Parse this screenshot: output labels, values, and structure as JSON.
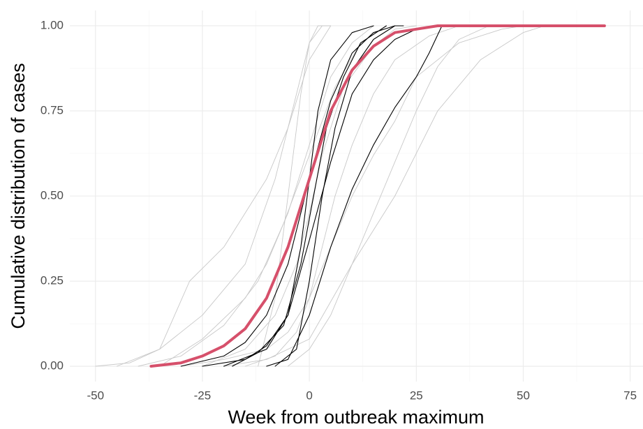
{
  "chart_data": {
    "type": "line",
    "x_label": "Week from outbreak maximum",
    "y_label": "Cumulative distribution of cases",
    "xlim": [
      -56,
      78
    ],
    "ylim": [
      -0.045,
      1.045
    ],
    "xticks": [
      -50,
      -25,
      0,
      25,
      50,
      75
    ],
    "yticks": [
      {
        "value": 0,
        "label": "0.00"
      },
      {
        "value": 0.25,
        "label": "0.25"
      },
      {
        "value": 0.5,
        "label": "0.50"
      },
      {
        "value": 0.75,
        "label": "0.75"
      },
      {
        "value": 1,
        "label": "1.00"
      }
    ],
    "grid": true,
    "series": [
      {
        "color": "#c8c8c8",
        "x": [
          -50,
          -42,
          -35,
          -28,
          -20,
          -15,
          -10,
          -5,
          0,
          5
        ],
        "values": [
          0,
          0.01,
          0.05,
          0.25,
          0.35,
          0.45,
          0.55,
          0.7,
          0.9,
          1
        ]
      },
      {
        "color": "#c8c8c8",
        "x": [
          -45,
          -35,
          -25,
          -15,
          -8,
          -3,
          0,
          3
        ],
        "values": [
          0,
          0.05,
          0.15,
          0.3,
          0.55,
          0.8,
          0.95,
          1
        ]
      },
      {
        "color": "#c8c8c8",
        "x": [
          -30,
          -20,
          -10,
          -5,
          0,
          5,
          10,
          15,
          20,
          25,
          35,
          45,
          50
        ],
        "values": [
          0,
          0.02,
          0.05,
          0.1,
          0.2,
          0.35,
          0.5,
          0.62,
          0.72,
          0.85,
          0.95,
          0.99,
          1
        ]
      },
      {
        "color": "#c8c8c8",
        "x": [
          -20,
          -10,
          0,
          10,
          20,
          30,
          40,
          50,
          55
        ],
        "values": [
          0,
          0.02,
          0.08,
          0.3,
          0.5,
          0.75,
          0.9,
          0.98,
          1
        ]
      },
      {
        "color": "#c8c8c8",
        "x": [
          -12,
          -8,
          -5,
          -2,
          0,
          2,
          5
        ],
        "values": [
          0,
          0.2,
          0.5,
          0.8,
          0.95,
          1,
          1
        ]
      },
      {
        "color": "#c8c8c8",
        "x": [
          -35,
          -25,
          -15,
          -10,
          -5,
          0,
          5,
          10,
          15
        ],
        "values": [
          0,
          0.08,
          0.2,
          0.3,
          0.45,
          0.65,
          0.85,
          0.95,
          1
        ]
      },
      {
        "color": "#c8c8c8",
        "x": [
          -25,
          -15,
          -8,
          -3,
          0,
          3,
          8,
          15,
          20,
          25
        ],
        "values": [
          0,
          0.05,
          0.15,
          0.3,
          0.45,
          0.62,
          0.82,
          0.94,
          0.99,
          1
        ]
      },
      {
        "color": "#c8c8c8",
        "x": [
          -15,
          -8,
          -3,
          0,
          3,
          6,
          10,
          15,
          20,
          28,
          35
        ],
        "values": [
          0,
          0.03,
          0.1,
          0.2,
          0.35,
          0.5,
          0.65,
          0.8,
          0.9,
          0.97,
          1
        ]
      },
      {
        "color": "#c8c8c8",
        "x": [
          -40,
          -30,
          -20,
          -12,
          -6,
          0,
          6,
          12,
          18
        ],
        "values": [
          0,
          0.03,
          0.12,
          0.25,
          0.42,
          0.62,
          0.82,
          0.95,
          1
        ]
      },
      {
        "color": "#c8c8c8",
        "x": [
          -5,
          0,
          5,
          10,
          15,
          20,
          25,
          30,
          35,
          42
        ],
        "values": [
          0,
          0.05,
          0.15,
          0.3,
          0.45,
          0.6,
          0.75,
          0.88,
          0.96,
          1
        ]
      },
      {
        "color": "#000000",
        "x": [
          -30,
          -20,
          -15,
          -10,
          -5,
          0,
          5,
          10,
          15,
          20,
          22
        ],
        "values": [
          0,
          0.03,
          0.07,
          0.15,
          0.3,
          0.55,
          0.78,
          0.92,
          0.98,
          1,
          1
        ]
      },
      {
        "color": "#000000",
        "x": [
          -25,
          -15,
          -10,
          -5,
          0,
          5,
          10,
          15,
          20,
          25,
          30
        ],
        "values": [
          0,
          0.02,
          0.06,
          0.15,
          0.37,
          0.6,
          0.8,
          0.9,
          0.96,
          0.99,
          1
        ]
      },
      {
        "color": "#000000",
        "x": [
          -10,
          -5,
          0,
          5,
          10,
          15,
          20,
          25,
          28,
          31
        ],
        "values": [
          0,
          0.02,
          0.15,
          0.35,
          0.52,
          0.65,
          0.76,
          0.85,
          0.92,
          1
        ]
      },
      {
        "color": "#000000",
        "x": [
          -8,
          -3,
          0,
          3,
          6,
          10,
          15,
          20
        ],
        "values": [
          0,
          0.05,
          0.25,
          0.5,
          0.7,
          0.87,
          0.96,
          1
        ]
      },
      {
        "color": "#000000",
        "x": [
          -20,
          -10,
          -5,
          -2,
          0,
          2,
          5,
          10,
          15
        ],
        "values": [
          0,
          0.05,
          0.15,
          0.35,
          0.55,
          0.75,
          0.9,
          0.98,
          1
        ]
      },
      {
        "color": "#000000",
        "x": [
          -18,
          -12,
          -6,
          -2,
          1,
          4,
          8,
          12,
          18
        ],
        "values": [
          0,
          0.04,
          0.12,
          0.3,
          0.5,
          0.7,
          0.85,
          0.95,
          1
        ]
      },
      {
        "color": "#d6506b",
        "x": [
          -37,
          -30,
          -25,
          -20,
          -15,
          -10,
          -5,
          0,
          5,
          10,
          15,
          20,
          25,
          30,
          40,
          50,
          60,
          69
        ],
        "values": [
          0,
          0.01,
          0.03,
          0.06,
          0.11,
          0.2,
          0.35,
          0.55,
          0.75,
          0.87,
          0.94,
          0.98,
          0.99,
          1,
          1,
          1,
          1,
          1
        ]
      }
    ]
  }
}
